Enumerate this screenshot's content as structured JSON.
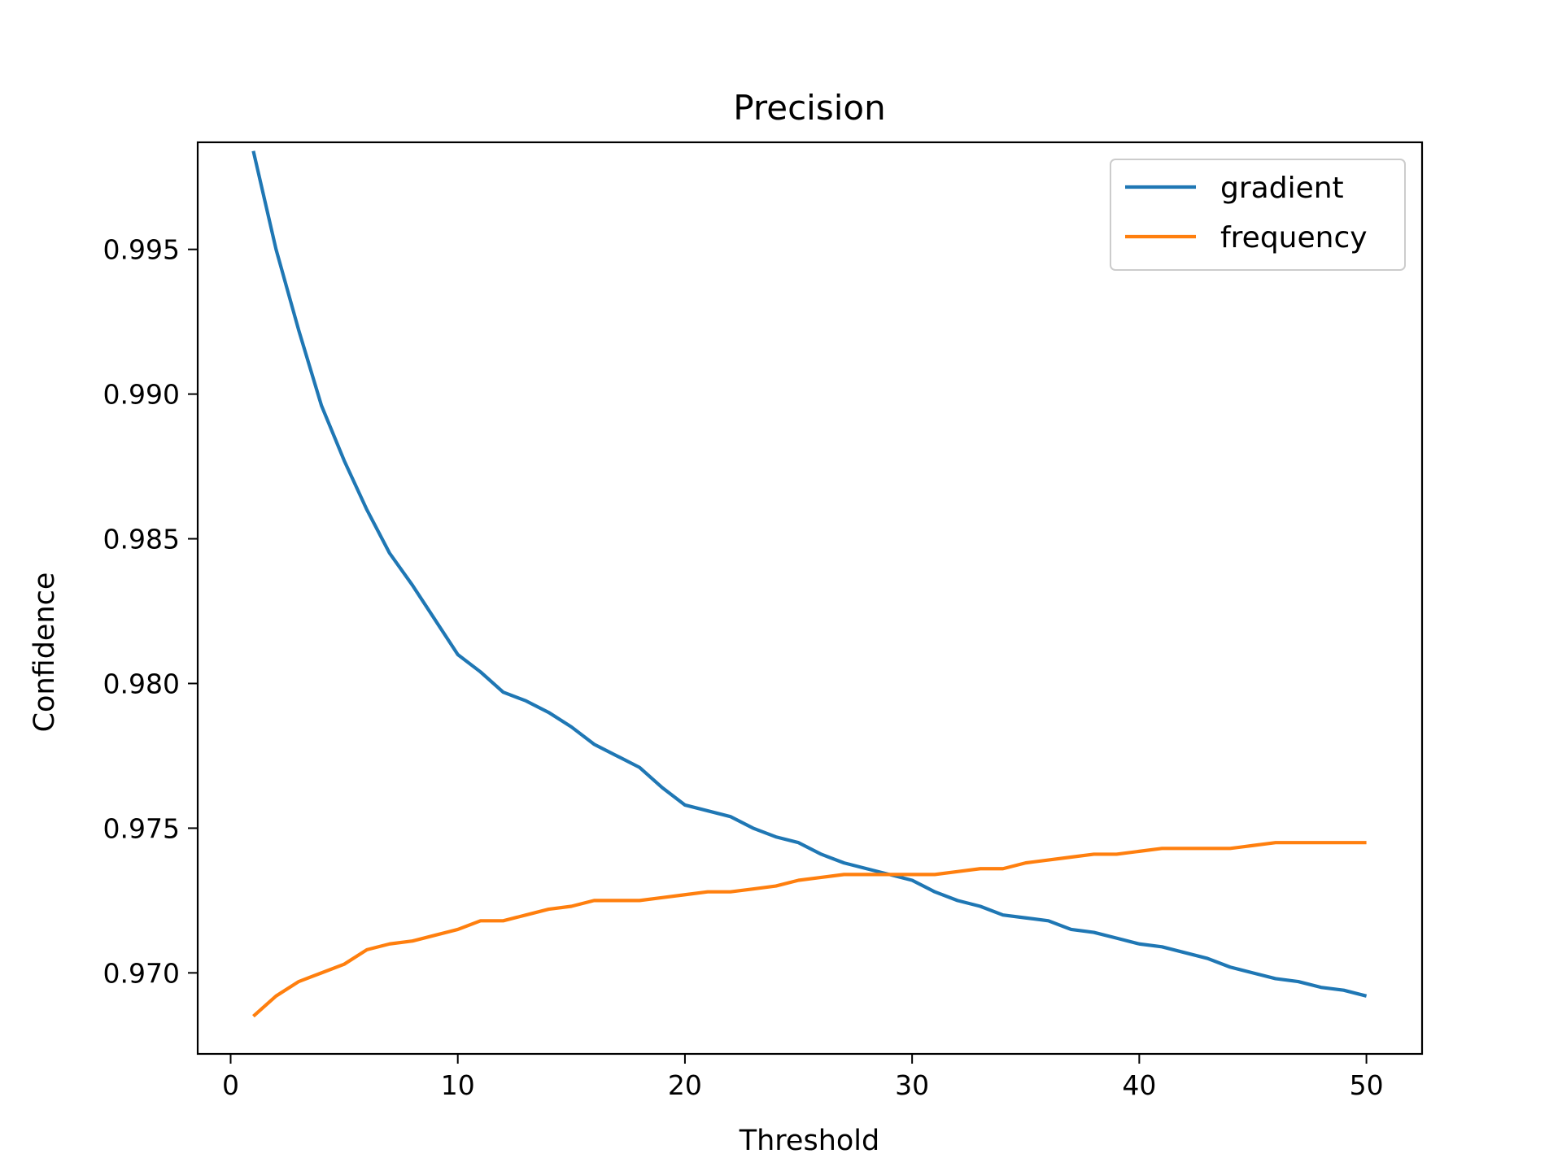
{
  "chart_data": {
    "type": "line",
    "title": "Precision",
    "xlabel": "Threshold",
    "ylabel": "Confidence",
    "xlim": [
      -1.45,
      52.45
    ],
    "ylim": [
      0.9672,
      0.9987
    ],
    "xticks": [
      0,
      10,
      20,
      30,
      40,
      50
    ],
    "xtick_labels": [
      "0",
      "10",
      "20",
      "30",
      "40",
      "50"
    ],
    "yticks": [
      0.97,
      0.975,
      0.98,
      0.985,
      0.99,
      0.995
    ],
    "ytick_labels": [
      "0.970",
      "0.975",
      "0.980",
      "0.985",
      "0.990",
      "0.995"
    ],
    "grid": false,
    "legend_position": "top-right",
    "x": [
      1,
      2,
      3,
      4,
      5,
      6,
      7,
      8,
      9,
      10,
      11,
      12,
      13,
      14,
      15,
      16,
      17,
      18,
      19,
      20,
      21,
      22,
      23,
      24,
      25,
      26,
      27,
      28,
      29,
      30,
      31,
      32,
      33,
      34,
      35,
      36,
      37,
      38,
      39,
      40,
      41,
      42,
      43,
      44,
      45,
      46,
      47,
      48,
      49,
      50
    ],
    "series": [
      {
        "name": "gradient",
        "color": "#1f77b4",
        "values": [
          0.9984,
          0.995,
          0.9922,
          0.9896,
          0.9877,
          0.986,
          0.9845,
          0.9834,
          0.9822,
          0.981,
          0.9804,
          0.9797,
          0.9794,
          0.979,
          0.9785,
          0.9779,
          0.9775,
          0.9771,
          0.9764,
          0.9758,
          0.9756,
          0.9754,
          0.975,
          0.9747,
          0.9745,
          0.9741,
          0.9738,
          0.9736,
          0.9734,
          0.9732,
          0.9728,
          0.9725,
          0.9723,
          0.972,
          0.9719,
          0.9718,
          0.9715,
          0.9714,
          0.9712,
          0.971,
          0.9709,
          0.9707,
          0.9705,
          0.9702,
          0.97,
          0.9698,
          0.9697,
          0.9695,
          0.9694,
          0.9692
        ]
      },
      {
        "name": "frequency",
        "color": "#ff7f0e",
        "values": [
          0.9685,
          0.9692,
          0.9697,
          0.97,
          0.9703,
          0.9708,
          0.971,
          0.9711,
          0.9713,
          0.9715,
          0.9718,
          0.9718,
          0.972,
          0.9722,
          0.9723,
          0.9725,
          0.9725,
          0.9725,
          0.9726,
          0.9727,
          0.9728,
          0.9728,
          0.9729,
          0.973,
          0.9732,
          0.9733,
          0.9734,
          0.9734,
          0.9734,
          0.9734,
          0.9734,
          0.9735,
          0.9736,
          0.9736,
          0.9738,
          0.9739,
          0.974,
          0.9741,
          0.9741,
          0.9742,
          0.9743,
          0.9743,
          0.9743,
          0.9743,
          0.9744,
          0.9745,
          0.9745,
          0.9745,
          0.9745,
          0.9745
        ]
      }
    ]
  }
}
